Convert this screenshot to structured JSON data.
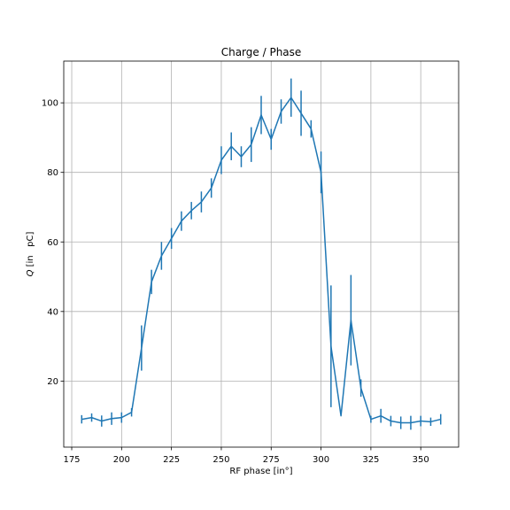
{
  "chart_data": {
    "type": "line",
    "title": "Charge / Phase",
    "xlabel": "RF phase [in°]",
    "ylabel_symbol": "Q",
    "ylabel_unit": "[in   pC]",
    "xlim": [
      171,
      369
    ],
    "ylim": [
      1,
      112
    ],
    "xticks": [
      175,
      200,
      225,
      250,
      275,
      300,
      325,
      350
    ],
    "yticks": [
      20,
      40,
      60,
      80,
      100
    ],
    "grid": true,
    "color": "#1f77b4",
    "series": [
      {
        "x": [
          180,
          185,
          190,
          195,
          200,
          205,
          210,
          215,
          220,
          225,
          230,
          235,
          240,
          245,
          250,
          255,
          260,
          265,
          270,
          275,
          280,
          285,
          290,
          295,
          300,
          305,
          310,
          315,
          320,
          325,
          330,
          335,
          340,
          345,
          350,
          355,
          360
        ],
        "y": [
          9,
          9.5,
          8.5,
          9.2,
          9.5,
          11,
          29.5,
          48.5,
          56,
          61,
          66,
          69,
          71.5,
          75.5,
          83.5,
          87.5,
          84.5,
          88,
          96.5,
          89.5,
          97.5,
          101.5,
          97,
          92.5,
          80,
          30,
          10,
          37.5,
          18,
          9,
          10,
          8.5,
          8,
          8,
          8.5,
          8.3,
          9
        ],
        "yerr": [
          1.2,
          1.2,
          1.6,
          1.8,
          1.5,
          1.2,
          6.5,
          3.5,
          4,
          3,
          2.8,
          2.5,
          3,
          2.8,
          4,
          4,
          3,
          5,
          5.5,
          3,
          3.5,
          5.5,
          6.5,
          2.5,
          6,
          17.5,
          0,
          13,
          2.5,
          1,
          2,
          1.5,
          1.8,
          2,
          1.5,
          1.2,
          1.5
        ]
      }
    ]
  }
}
